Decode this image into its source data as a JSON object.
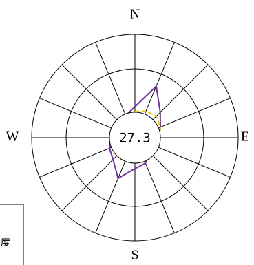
{
  "chart_data": {
    "type": "radar",
    "direction_labels": [
      "N",
      "E",
      "S",
      "W"
    ],
    "center_value": 27.3,
    "rlim": [
      0,
      150
    ],
    "series": [
      {
        "color": "#7030a0",
        "dashed": false,
        "values": [
          45,
          81,
          52,
          40,
          35,
          34,
          30,
          40,
          45,
          64,
          45,
          40,
          35,
          34,
          33,
          35
        ]
      },
      {
        "color": "#f5c400",
        "dashed": true,
        "values": [
          38,
          42,
          44,
          40,
          36,
          36,
          37,
          38,
          36,
          38,
          37,
          36,
          35,
          35,
          36,
          37
        ]
      }
    ],
    "box_text": "度"
  }
}
